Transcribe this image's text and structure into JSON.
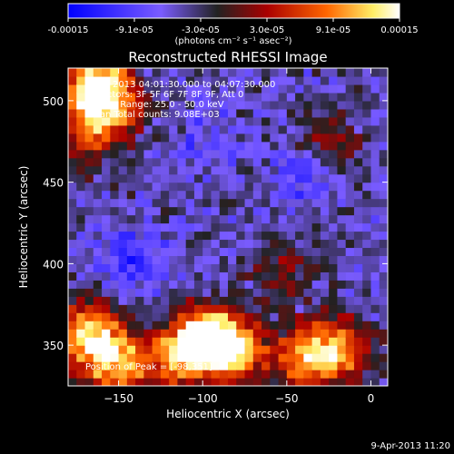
{
  "chart_data": {
    "type": "heatmap",
    "title": "Reconstructed RHESSI Image",
    "xlabel": "Heliocentric X (arcsec)",
    "ylabel": "Heliocentric Y (arcsec)",
    "xlim": [
      -180,
      10
    ],
    "ylim": [
      325,
      520
    ],
    "x_ticks": [
      -150,
      -100,
      -50,
      0
    ],
    "y_ticks": [
      350,
      400,
      450,
      500
    ],
    "colorbar": {
      "range": [
        -0.00015,
        0.00015
      ],
      "tick_labels": [
        "-0.00015",
        "-9.1e-05",
        "-3.0e-05",
        "3.0e-05",
        "9.1e-05",
        "0.00015"
      ],
      "unit_label": "(photons cm⁻² s⁻¹ asec⁻²)",
      "colors": [
        "#0000ff",
        "#7a5cff",
        "#222222",
        "#aa0000",
        "#ff6600",
        "#ffee66",
        "#ffffff"
      ]
    },
    "annotations": [
      "9-Apr-2013 04:01:30.000 to 04:07:30.000",
      "Detectors: 3F 5F 6F 7F 8F 9F, Att 0",
      "Energy Range: 25.0 - 50.0 keV",
      "Clean     Total counts: 9.08E+03"
    ],
    "peak_label": "Position of Peak = [-98,351]",
    "peak": [
      -98,
      351
    ],
    "bright_regions": [
      {
        "x": -165,
        "y": 510,
        "intensity": 1.0
      },
      {
        "x": -160,
        "y": 490,
        "intensity": 0.7
      },
      {
        "x": -175,
        "y": 475,
        "intensity": 0.4
      },
      {
        "x": -170,
        "y": 355,
        "intensity": 0.9
      },
      {
        "x": -155,
        "y": 335,
        "intensity": 0.8
      },
      {
        "x": -100,
        "y": 352,
        "intensity": 1.0
      },
      {
        "x": -85,
        "y": 345,
        "intensity": 0.9
      },
      {
        "x": -120,
        "y": 340,
        "intensity": 0.7
      },
      {
        "x": -40,
        "y": 340,
        "intensity": 0.8
      },
      {
        "x": -20,
        "y": 345,
        "intensity": 0.6
      },
      {
        "x": -30,
        "y": 470,
        "intensity": 0.4
      },
      {
        "x": -55,
        "y": 395,
        "intensity": 0.3
      }
    ],
    "dim_regions": [
      {
        "x": -145,
        "y": 400,
        "depth": 0.9
      },
      {
        "x": -40,
        "y": 455,
        "depth": 0.9
      },
      {
        "x": -100,
        "y": 470,
        "depth": 0.5
      }
    ]
  },
  "footer": {
    "timestamp": "9-Apr-2013 11:20"
  }
}
